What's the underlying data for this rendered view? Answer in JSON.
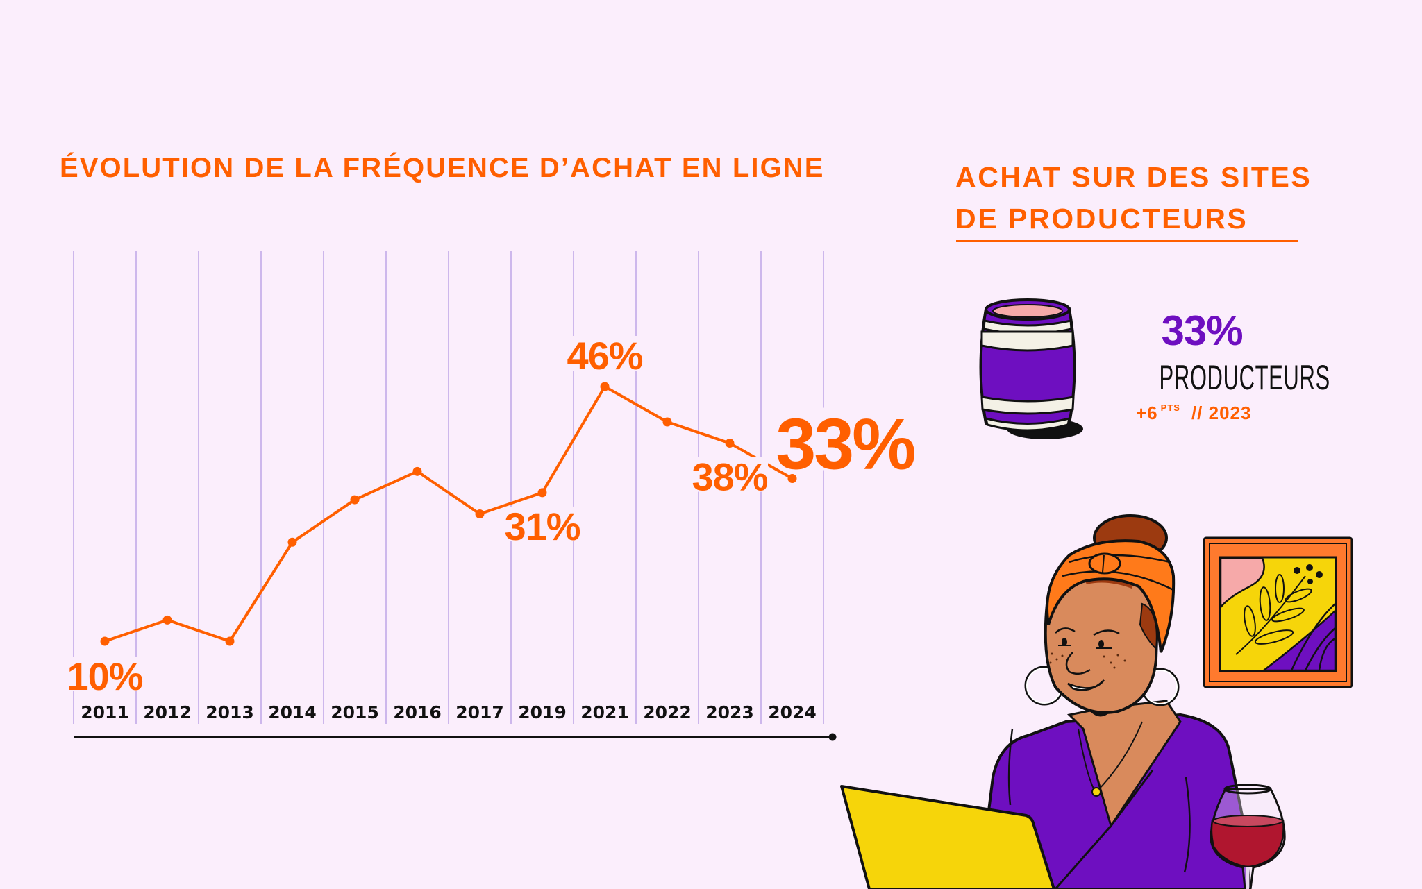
{
  "left_panel": {
    "title": "ÉVOLUTION DE LA FRÉQUENCE D’ACHAT EN LIGNE"
  },
  "right_panel": {
    "title_lines": [
      "ACHAT SUR DES SITES",
      "DE PRODUCTEURS"
    ],
    "stat": {
      "value": "33%",
      "label": "PRODUCTEURS",
      "change": "+6",
      "change_unit": "PTS",
      "separator": "//",
      "year": "2023"
    },
    "icon": "wine-barrel-icon"
  },
  "illustration": {
    "subject": "woman-with-laptop-and-wine-glass",
    "picture": "framed-painting"
  },
  "colors": {
    "background": "#FBEEFC",
    "accent_orange": "#FF5F00",
    "accent_purple": "#6E0FC0",
    "gridline": "#CDB7EC",
    "text_dark": "#111111"
  },
  "chart_data": {
    "type": "line",
    "title": "ÉVOLUTION DE LA FRÉQUENCE D’ACHAT EN LIGNE",
    "xlabel": "",
    "ylabel": "",
    "categories": [
      "2011",
      "2012",
      "2013",
      "2014",
      "2015",
      "2016",
      "2017",
      "2019",
      "2021",
      "2022",
      "2023",
      "2024"
    ],
    "series": [
      {
        "name": "Fréquence d’achat en ligne",
        "values": [
          10,
          13,
          10,
          24,
          30,
          34,
          28,
          31,
          46,
          41,
          38,
          33
        ]
      }
    ],
    "data_labels": [
      {
        "category": "2011",
        "text": "10%",
        "position": "below",
        "emphasis": false
      },
      {
        "category": "2019",
        "text": "31%",
        "position": "below",
        "emphasis": false
      },
      {
        "category": "2021",
        "text": "46%",
        "position": "above",
        "emphasis": false
      },
      {
        "category": "2023",
        "text": "38%",
        "position": "below",
        "emphasis": false
      },
      {
        "category": "2024",
        "text": "33%",
        "position": "right",
        "emphasis": true
      }
    ],
    "ylim": [
      0,
      50
    ],
    "grid": "vertical",
    "legend": "none",
    "unit": "%"
  }
}
